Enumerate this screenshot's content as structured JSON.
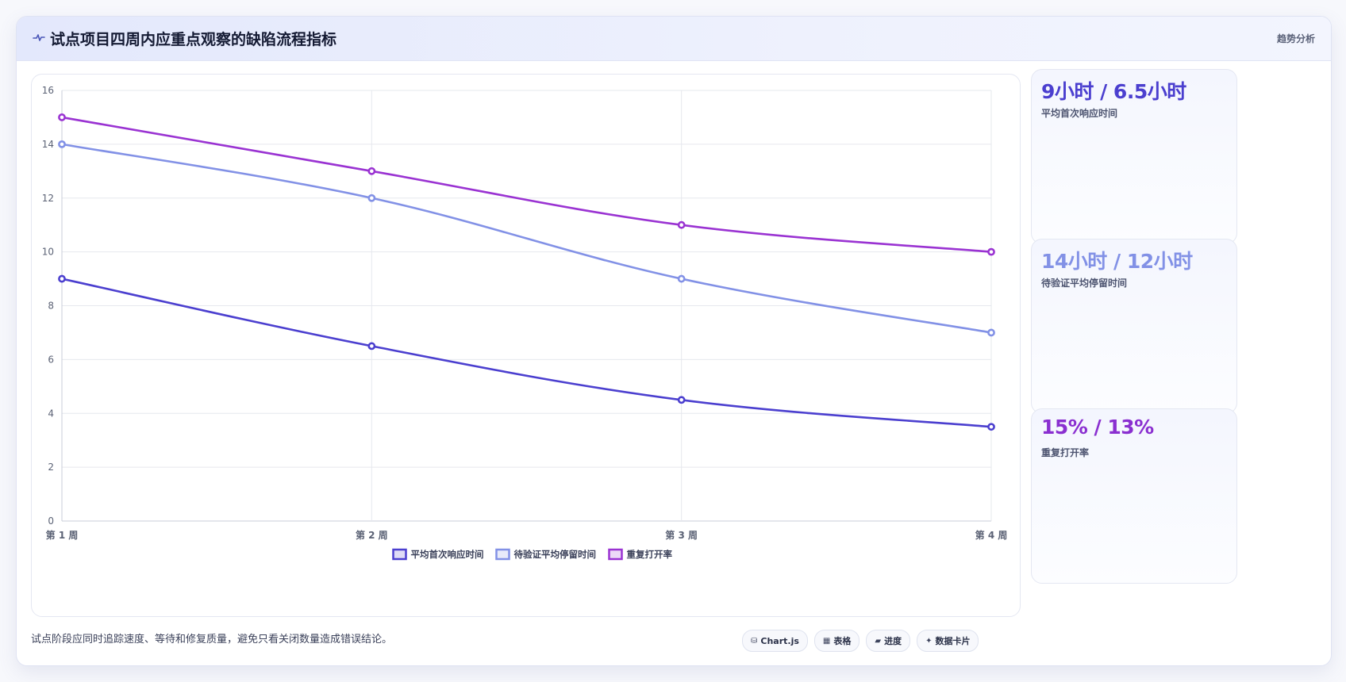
{
  "header": {
    "title": "试点项目四周内应重点观察的缺陷流程指标",
    "tag": "趋势分析",
    "icon": "pulse-icon"
  },
  "chart_data": {
    "type": "line",
    "categories": [
      "第 1 周",
      "第 2 周",
      "第 3 周",
      "第 4 周"
    ],
    "ylim": [
      0,
      16
    ],
    "yticks": [
      0,
      2,
      4,
      6,
      8,
      10,
      12,
      14,
      16
    ],
    "grid": true,
    "legend": "bottom",
    "series": [
      {
        "name": "平均首次响应时间",
        "values": [
          9,
          6.5,
          4.5,
          3.5
        ],
        "color": "#4b3fcf"
      },
      {
        "name": "待验证平均停留时间",
        "values": [
          14,
          12,
          9,
          7
        ],
        "color": "#8291e6"
      },
      {
        "name": "重复打开率",
        "values": [
          15,
          13,
          11,
          10
        ],
        "color": "#9a33d2"
      }
    ]
  },
  "sidebar": {
    "cards": [
      {
        "value": "9小时 / 6.5小时",
        "label": "平均首次响应时间",
        "color": "#4b3fcf"
      },
      {
        "value": "14小时 / 12小时",
        "label": "待验证平均停留时间",
        "color": "#8291e6"
      },
      {
        "value": "15% / 13%",
        "label": "重复打开率",
        "color": "#8a2fd0"
      }
    ]
  },
  "footer": {
    "note": "试点阶段应同时追踪速度、等待和修复质量，避免只看关闭数量造成错误结论。",
    "chips": [
      {
        "icon": "⛁",
        "icon_name": "chart-icon",
        "label": "Chart.js"
      },
      {
        "icon": "▦",
        "icon_name": "table-icon",
        "label": "表格"
      },
      {
        "icon": "▰",
        "icon_name": "progress-icon",
        "label": "进度"
      },
      {
        "icon": "✦",
        "icon_name": "sparkle-icon",
        "label": "数据卡片"
      }
    ]
  }
}
